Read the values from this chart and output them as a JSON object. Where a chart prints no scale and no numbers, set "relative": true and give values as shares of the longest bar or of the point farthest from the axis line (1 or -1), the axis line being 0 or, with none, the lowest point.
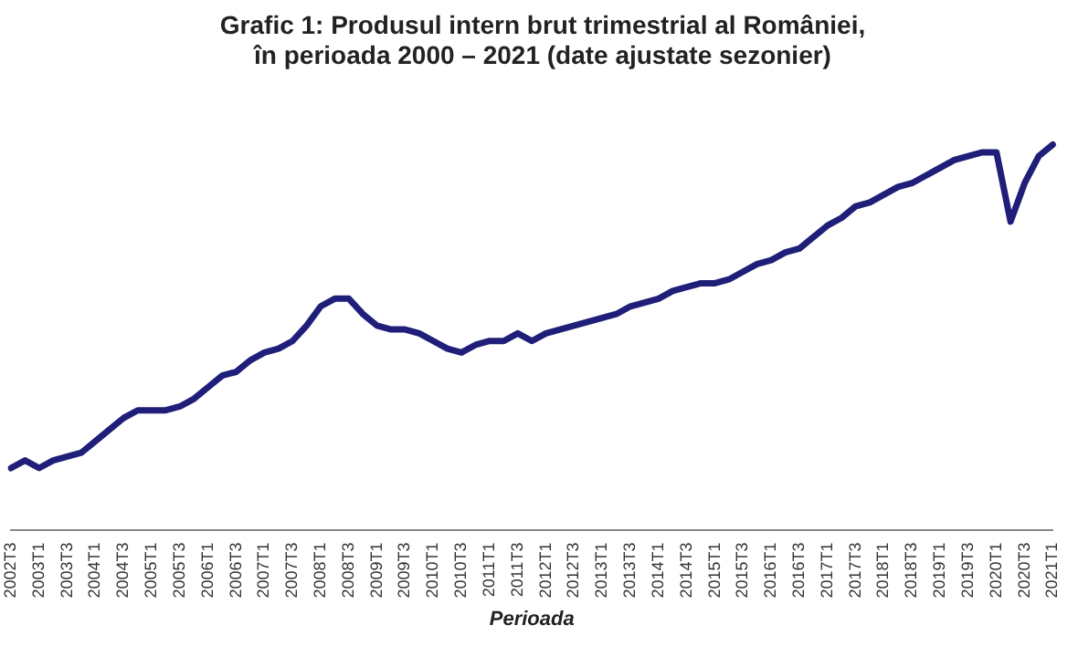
{
  "chart_data": {
    "type": "line",
    "title": "Grafic 1: Produsul intern brut trimestrial al României,\nîn perioada 2000 – 2021 (date ajustate sezonier)",
    "xlabel": "Perioada",
    "relative": true,
    "legend": false,
    "marker": "none",
    "line_style": "solid",
    "categories": [
      "2002T3",
      null,
      "2003T1",
      null,
      "2003T3",
      null,
      "2004T1",
      null,
      "2004T3",
      null,
      "2005T1",
      null,
      "2005T3",
      null,
      "2006T1",
      null,
      "2006T3",
      null,
      "2007T1",
      null,
      "2007T3",
      null,
      "2008T1",
      null,
      "2008T3",
      null,
      "2009T1",
      null,
      "2009T3",
      null,
      "2010T1",
      null,
      "2010T3",
      null,
      "2011T1",
      null,
      "2011T3",
      null,
      "2012T1",
      null,
      "2012T3",
      null,
      "2013T1",
      null,
      "2013T3",
      null,
      "2014T1",
      null,
      "2014T3",
      null,
      "2015T1",
      null,
      "2015T3",
      null,
      "2016T1",
      null,
      "2016T3",
      null,
      "2017T1",
      null,
      "2017T3",
      null,
      "2018T1",
      null,
      "2018T3",
      null,
      "2019T1",
      null,
      "2019T3",
      null,
      "2020T1",
      null,
      "2020T3",
      null,
      "2021T1"
    ],
    "series": [
      {
        "color": "#1f1f7a",
        "values": [
          0.16,
          0.18,
          0.16,
          0.18,
          0.19,
          0.2,
          0.23,
          0.26,
          0.29,
          0.31,
          0.31,
          0.31,
          0.32,
          0.34,
          0.37,
          0.4,
          0.41,
          0.44,
          0.46,
          0.47,
          0.49,
          0.53,
          0.58,
          0.6,
          0.6,
          0.56,
          0.53,
          0.52,
          0.52,
          0.51,
          0.49,
          0.47,
          0.46,
          0.48,
          0.49,
          0.49,
          0.51,
          0.49,
          0.51,
          0.52,
          0.53,
          0.54,
          0.55,
          0.56,
          0.58,
          0.59,
          0.6,
          0.62,
          0.63,
          0.64,
          0.64,
          0.65,
          0.67,
          0.69,
          0.7,
          0.72,
          0.73,
          0.76,
          0.79,
          0.81,
          0.84,
          0.85,
          0.87,
          0.89,
          0.9,
          0.92,
          0.94,
          0.96,
          0.97,
          0.98,
          0.98,
          0.8,
          0.9,
          0.97,
          1
        ]
      }
    ]
  }
}
